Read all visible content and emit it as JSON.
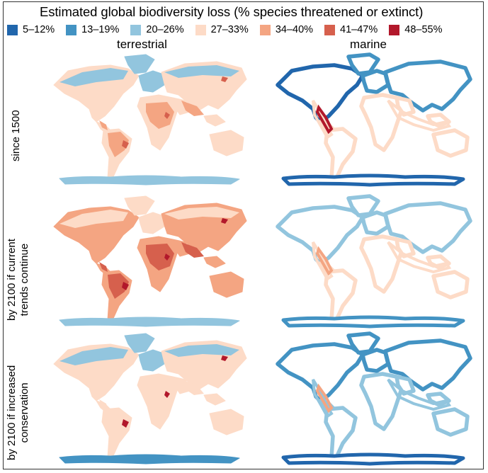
{
  "title": "Estimated global biodiversity loss (% species threatened or extinct)",
  "legend": [
    {
      "label": "5–12%",
      "color": "#2166ac"
    },
    {
      "label": "13–19%",
      "color": "#4393c3"
    },
    {
      "label": "20–26%",
      "color": "#92c5de"
    },
    {
      "label": "27–33%",
      "color": "#fddbc7"
    },
    {
      "label": "34–40%",
      "color": "#f4a582"
    },
    {
      "label": "41–47%",
      "color": "#d6604d"
    },
    {
      "label": "48–55%",
      "color": "#b2182b"
    }
  ],
  "columns": {
    "terrestrial": "terrestrial",
    "marine": "marine"
  },
  "rows": {
    "since_1500": "since 1500",
    "trends_line1": "by 2100 if current",
    "trends_line2": "trends continue",
    "conservation_line1": "by 2100 if increased",
    "conservation_line2": "conservation"
  },
  "panels": {
    "terrestrial_since1500": {
      "base": "#fddbc7",
      "north": "#92c5de",
      "tropics": "#f4a582",
      "hotspot": "#d6604d",
      "antarctica": "#92c5de"
    },
    "marine_since1500": {
      "base": "#fddbc7",
      "north": "#4393c3",
      "pacific": "#2166ac",
      "hotspot": "#b2182b",
      "antarctica": "#2166ac"
    },
    "terrestrial_trends": {
      "base": "#f4a582",
      "north": "#fddbc7",
      "tropics": "#d6604d",
      "hotspot": "#b2182b",
      "antarctica": "#92c5de"
    },
    "marine_trends": {
      "base": "#fddbc7",
      "north": "#92c5de",
      "pacific": "#92c5de",
      "hotspot": "#f4a582",
      "antarctica": "#4393c3"
    },
    "terrestrial_conservation": {
      "base": "#fddbc7",
      "north": "#92c5de",
      "tropics": "#fddbc7",
      "hotspot": "#b2182b",
      "antarctica": "#4393c3"
    },
    "marine_conservation": {
      "base": "#92c5de",
      "north": "#4393c3",
      "pacific": "#4393c3",
      "hotspot": "#f4a582",
      "antarctica": "#2166ac"
    }
  }
}
